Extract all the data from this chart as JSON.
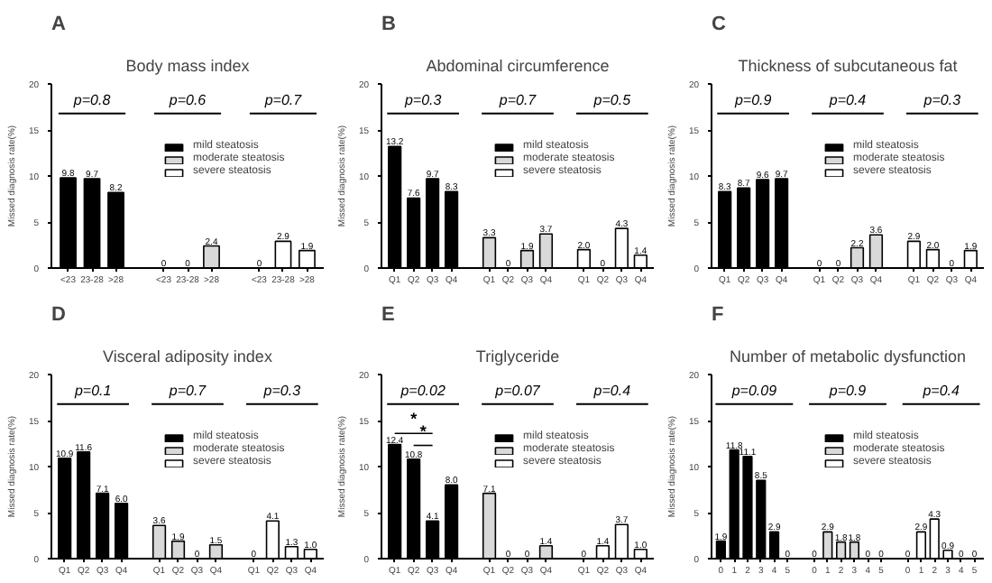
{
  "chart_data": [
    {
      "type": "bar",
      "title": "Body mass index",
      "ylabel": "Missed diagnosis rate(%)",
      "ylim": [
        0,
        20
      ],
      "yticks": [
        0,
        5,
        10,
        15,
        20
      ],
      "grid": false,
      "legend": "top right",
      "annotations": [
        "A",
        "p=0.8",
        "p=0.6",
        "p=0.7"
      ],
      "categories": [
        "<23",
        "23-28",
        ">28",
        null,
        "<23",
        "23-28",
        ">28",
        null,
        "<23",
        "23-28",
        ">28"
      ],
      "series": [
        {
          "name": "mild steatosis",
          "color": "#000000",
          "values": [
            9.8,
            9.7,
            8.2,
            null,
            null,
            null,
            null,
            null,
            null,
            null,
            null
          ],
          "value_labels": [
            "9.8",
            "9.7",
            "8.2",
            null,
            null,
            null,
            null,
            null,
            null,
            null,
            null
          ]
        },
        {
          "name": "moderate steatosis",
          "color": "#d9d9d9",
          "values": [
            null,
            null,
            null,
            null,
            0,
            0,
            2.4,
            null,
            null,
            null,
            null
          ],
          "value_labels": [
            null,
            null,
            null,
            null,
            "0",
            "0",
            "2.4",
            null,
            null,
            null,
            null
          ]
        },
        {
          "name": "severe steatosis",
          "color": "#ffffff",
          "values": [
            null,
            null,
            null,
            null,
            null,
            null,
            null,
            null,
            0,
            2.9,
            1.9
          ],
          "value_labels": [
            null,
            null,
            null,
            null,
            null,
            null,
            null,
            null,
            "0",
            "2.9",
            "1.9"
          ]
        }
      ]
    },
    {
      "type": "bar",
      "title": "Abdominal circumference",
      "ylabel": "Missed diagnosis rate(%)",
      "ylim": [
        0,
        20
      ],
      "yticks": [
        0,
        5,
        10,
        15,
        20
      ],
      "grid": false,
      "legend": "top right",
      "annotations": [
        "B",
        "p=0.3",
        "p=0.7",
        "p=0.5"
      ],
      "categories": [
        "Q1",
        "Q2",
        "Q3",
        "Q4",
        null,
        "Q1",
        "Q2",
        "Q3",
        "Q4",
        null,
        "Q1",
        "Q2",
        "Q3",
        "Q4"
      ],
      "series": [
        {
          "name": "mild steatosis",
          "color": "#000000",
          "values": [
            13.2,
            7.6,
            9.7,
            8.3,
            null,
            null,
            null,
            null,
            null,
            null,
            null,
            null,
            null,
            null
          ],
          "value_labels": [
            "13.2",
            "7.6",
            "9.7",
            "8.3",
            null,
            null,
            null,
            null,
            null,
            null,
            null,
            null,
            null,
            null
          ]
        },
        {
          "name": "moderate steatosis",
          "color": "#d9d9d9",
          "values": [
            null,
            null,
            null,
            null,
            null,
            3.3,
            0,
            1.9,
            3.7,
            null,
            null,
            null,
            null,
            null
          ],
          "value_labels": [
            null,
            null,
            null,
            null,
            null,
            "3.3",
            "0",
            "1.9",
            "3.7",
            null,
            null,
            null,
            null,
            null
          ]
        },
        {
          "name": "severe steatosis",
          "color": "#ffffff",
          "values": [
            null,
            null,
            null,
            null,
            null,
            null,
            null,
            null,
            null,
            null,
            2.0,
            0,
            4.3,
            1.4
          ],
          "value_labels": [
            null,
            null,
            null,
            null,
            null,
            null,
            null,
            null,
            null,
            null,
            "2.0",
            "0",
            "4.3",
            "1.4"
          ]
        }
      ]
    },
    {
      "type": "bar",
      "title": "Thickness of subcutaneous fat",
      "ylabel": "Missed diagnosis rate(%)",
      "ylim": [
        0,
        20
      ],
      "yticks": [
        0,
        5,
        10,
        15,
        20
      ],
      "grid": false,
      "legend": "top right",
      "annotations": [
        "C",
        "p=0.9",
        "p=0.4",
        "p=0.3"
      ],
      "categories": [
        "Q1",
        "Q2",
        "Q3",
        "Q4",
        null,
        "Q1",
        "Q2",
        "Q3",
        "Q4",
        null,
        "Q1",
        "Q2",
        "Q3",
        "Q4"
      ],
      "series": [
        {
          "name": "mild steatosis",
          "color": "#000000",
          "values": [
            8.3,
            8.7,
            9.6,
            9.7,
            null,
            null,
            null,
            null,
            null,
            null,
            null,
            null,
            null,
            null
          ],
          "value_labels": [
            "8.3",
            "8.7",
            "9.6",
            "9.7",
            null,
            null,
            null,
            null,
            null,
            null,
            null,
            null,
            null,
            null
          ]
        },
        {
          "name": "moderate steatosis",
          "color": "#d9d9d9",
          "values": [
            null,
            null,
            null,
            null,
            null,
            0,
            0,
            2.2,
            3.6,
            null,
            null,
            null,
            null,
            null
          ],
          "value_labels": [
            null,
            null,
            null,
            null,
            null,
            "0",
            "0",
            "2.2",
            "3.6",
            null,
            null,
            null,
            null,
            null
          ]
        },
        {
          "name": "severe steatosis",
          "color": "#ffffff",
          "values": [
            null,
            null,
            null,
            null,
            null,
            null,
            null,
            null,
            null,
            null,
            2.9,
            2.0,
            0,
            1.9
          ],
          "value_labels": [
            null,
            null,
            null,
            null,
            null,
            null,
            null,
            null,
            null,
            null,
            "2.9",
            "2.0",
            "0",
            "1.9"
          ]
        }
      ]
    },
    {
      "type": "bar",
      "title": "Visceral adiposity index",
      "ylabel": "Missed diagnosis rate(%)",
      "ylim": [
        0,
        20
      ],
      "yticks": [
        0,
        5,
        10,
        15,
        20
      ],
      "grid": false,
      "legend": "top right",
      "annotations": [
        "D",
        "p=0.1",
        "p=0.7",
        "p=0.3"
      ],
      "categories": [
        "Q1",
        "Q2",
        "Q3",
        "Q4",
        null,
        "Q1",
        "Q2",
        "Q3",
        "Q4",
        null,
        "Q1",
        "Q2",
        "Q3",
        "Q4"
      ],
      "series": [
        {
          "name": "mild steatosis",
          "color": "#000000",
          "values": [
            10.9,
            11.6,
            7.1,
            6.0,
            null,
            null,
            null,
            null,
            null,
            null,
            null,
            null,
            null,
            null
          ],
          "value_labels": [
            "10.9",
            "11.6",
            "7.1",
            "6.0",
            null,
            null,
            null,
            null,
            null,
            null,
            null,
            null,
            null,
            null
          ]
        },
        {
          "name": "moderate steatosis",
          "color": "#d9d9d9",
          "values": [
            null,
            null,
            null,
            null,
            null,
            3.6,
            1.9,
            0,
            1.5,
            null,
            null,
            null,
            null,
            null
          ],
          "value_labels": [
            null,
            null,
            null,
            null,
            null,
            "3.6",
            "1.9",
            "0",
            "1.5",
            null,
            null,
            null,
            null,
            null
          ]
        },
        {
          "name": "severe steatosis",
          "color": "#ffffff",
          "values": [
            null,
            null,
            null,
            null,
            null,
            null,
            null,
            null,
            null,
            null,
            0,
            4.1,
            1.3,
            1.0
          ],
          "value_labels": [
            null,
            null,
            null,
            null,
            null,
            null,
            null,
            null,
            null,
            null,
            "0",
            "4.1",
            "1.3",
            "1.0"
          ]
        }
      ]
    },
    {
      "type": "bar",
      "title": "Triglyceride",
      "ylabel": "Missed diagnosis rate(%)",
      "ylim": [
        0,
        20
      ],
      "yticks": [
        0,
        5,
        10,
        15,
        20
      ],
      "grid": false,
      "legend": "top right",
      "annotations": [
        "E",
        "p=0.02",
        "p=0.07",
        "p=0.4",
        "*",
        "*"
      ],
      "categories": [
        "Q1",
        "Q2",
        "Q3",
        "Q4",
        null,
        "Q1",
        "Q2",
        "Q3",
        "Q4",
        null,
        "Q1",
        "Q2",
        "Q3",
        "Q4"
      ],
      "series": [
        {
          "name": "mild steatosis",
          "color": "#000000",
          "values": [
            12.4,
            10.8,
            4.1,
            8.0,
            null,
            null,
            null,
            null,
            null,
            null,
            null,
            null,
            null,
            null
          ],
          "value_labels": [
            "12.4",
            "10.8",
            "4.1",
            "8.0",
            null,
            null,
            null,
            null,
            null,
            null,
            null,
            null,
            null,
            null
          ]
        },
        {
          "name": "moderate steatosis",
          "color": "#d9d9d9",
          "values": [
            null,
            null,
            null,
            null,
            null,
            7.1,
            0,
            0,
            1.4,
            null,
            null,
            null,
            null,
            null
          ],
          "value_labels": [
            null,
            null,
            null,
            null,
            null,
            "7.1",
            "0",
            "0",
            "1.4",
            null,
            null,
            null,
            null,
            null
          ]
        },
        {
          "name": "severe steatosis",
          "color": "#ffffff",
          "values": [
            null,
            null,
            null,
            null,
            null,
            null,
            null,
            null,
            null,
            null,
            0,
            1.4,
            3.7,
            1.0
          ],
          "value_labels": [
            null,
            null,
            null,
            null,
            null,
            null,
            null,
            null,
            null,
            null,
            "0",
            "1.4",
            "3.7",
            "1.0"
          ]
        }
      ]
    },
    {
      "type": "bar",
      "title": "Number of metabolic dysfunction",
      "ylabel": "Missed diagnosis rate(%)",
      "ylim": [
        0,
        20
      ],
      "yticks": [
        0,
        5,
        10,
        15,
        20
      ],
      "grid": false,
      "legend": "top right",
      "annotations": [
        "F",
        "p=0.09",
        "p=0.9",
        "p=0.4"
      ],
      "categories": [
        "0",
        "1",
        "2",
        "3",
        "4",
        "5",
        null,
        "0",
        "1",
        "2",
        "3",
        "4",
        "5",
        null,
        "0",
        "1",
        "2",
        "3",
        "4",
        "5"
      ],
      "series": [
        {
          "name": "mild steatosis",
          "color": "#000000",
          "values": [
            1.9,
            11.8,
            11.1,
            8.5,
            2.9,
            0,
            null,
            null,
            null,
            null,
            null,
            null,
            null,
            null,
            null,
            null,
            null,
            null,
            null,
            null
          ],
          "value_labels": [
            "1.9",
            "11.8",
            "11.1",
            "8.5",
            "2.9",
            "0",
            null,
            null,
            null,
            null,
            null,
            null,
            null,
            null,
            null,
            null,
            null,
            null,
            null,
            null
          ]
        },
        {
          "name": "moderate steatosis",
          "color": "#d9d9d9",
          "values": [
            null,
            null,
            null,
            null,
            null,
            null,
            null,
            0,
            2.9,
            1.8,
            1.8,
            0,
            0,
            null,
            null,
            null,
            null,
            null,
            null,
            null
          ],
          "value_labels": [
            null,
            null,
            null,
            null,
            null,
            null,
            null,
            "0",
            "2.9",
            "1.8",
            "1.8",
            "0",
            "0",
            null,
            null,
            null,
            null,
            null,
            null,
            null
          ]
        },
        {
          "name": "severe steatosis",
          "color": "#ffffff",
          "values": [
            null,
            null,
            null,
            null,
            null,
            null,
            null,
            null,
            null,
            null,
            null,
            null,
            null,
            null,
            0,
            2.9,
            4.3,
            0.9,
            0,
            0
          ],
          "value_labels": [
            null,
            null,
            null,
            null,
            null,
            null,
            null,
            null,
            null,
            null,
            null,
            null,
            null,
            null,
            "0",
            "2.9",
            "4.3",
            "0.9",
            "0",
            "0"
          ]
        }
      ]
    }
  ]
}
